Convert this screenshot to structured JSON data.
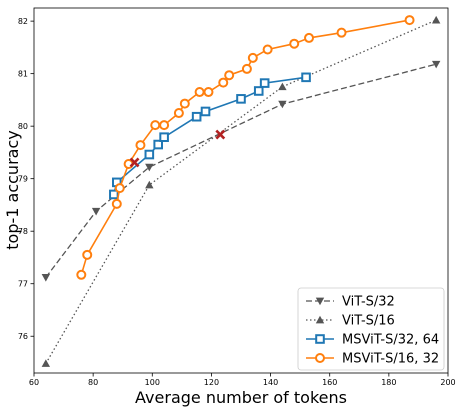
{
  "chart_data": {
    "type": "line",
    "title": "",
    "xlabel": "Average number of tokens",
    "ylabel": "top-1 accuracy",
    "xlim": [
      60,
      200
    ],
    "ylim": [
      75.3,
      82.25
    ],
    "xticks": [
      60,
      80,
      100,
      120,
      140,
      160,
      180,
      200
    ],
    "yticks": [
      76,
      77,
      78,
      79,
      80,
      81,
      82
    ],
    "grid": false,
    "legend_position": "lower-right",
    "series": [
      {
        "name": "ViT-S/32",
        "color": "#555555",
        "line_style": "dashed",
        "marker": "triangle-down",
        "x": [
          64,
          81,
          99,
          144,
          196
        ],
        "y": [
          77.12,
          78.38,
          79.22,
          80.42,
          81.18
        ]
      },
      {
        "name": "ViT-S/16",
        "color": "#555555",
        "line_style": "dotted",
        "marker": "triangle-up",
        "x": [
          64,
          99,
          144,
          196
        ],
        "y": [
          75.48,
          78.88,
          80.75,
          82.02
        ]
      },
      {
        "name": "MSViT-S/32, 64",
        "color": "#1f77b4",
        "line_style": "solid",
        "marker": "square",
        "x": [
          87,
          88,
          99,
          102,
          104,
          115,
          118,
          130,
          136,
          138,
          152
        ],
        "y": [
          78.7,
          78.93,
          79.46,
          79.65,
          79.79,
          80.18,
          80.28,
          80.52,
          80.67,
          80.82,
          80.93
        ]
      },
      {
        "name": "MSViT-S/16, 32",
        "color": "#ff7f0e",
        "line_style": "solid",
        "marker": "circle",
        "x": [
          76,
          78,
          88,
          89,
          92,
          96,
          101,
          104,
          109,
          111,
          116,
          119,
          124,
          126,
          132,
          134,
          139,
          148,
          153,
          164,
          187
        ],
        "y": [
          77.17,
          77.55,
          78.52,
          78.82,
          79.28,
          79.64,
          80.02,
          80.02,
          80.25,
          80.43,
          80.65,
          80.65,
          80.83,
          80.97,
          81.09,
          81.3,
          81.46,
          81.57,
          81.68,
          81.78,
          82.02
        ]
      }
    ],
    "highlights": [
      {
        "x": 94,
        "y": 79.31,
        "marker": "x",
        "color": "#b22222"
      },
      {
        "x": 123,
        "y": 79.84,
        "marker": "x",
        "color": "#b22222"
      }
    ]
  }
}
